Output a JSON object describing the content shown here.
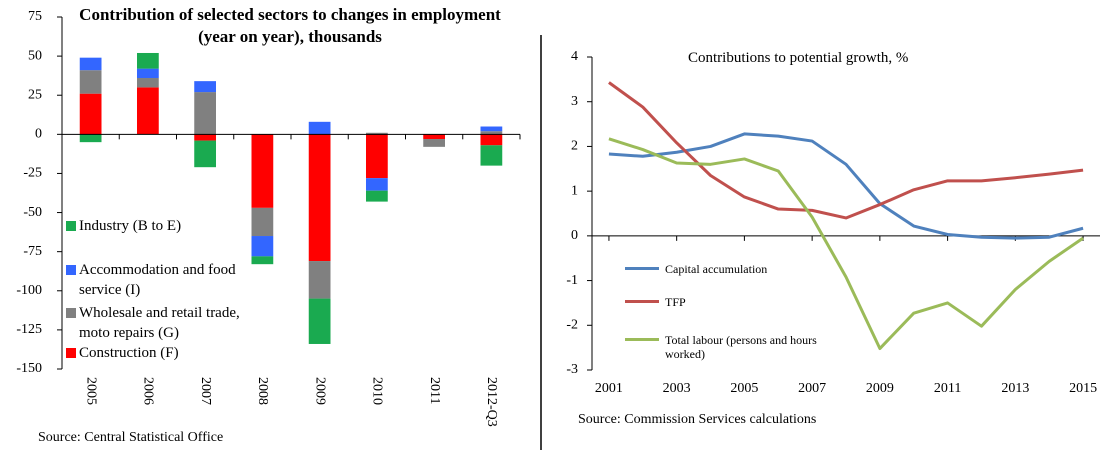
{
  "chart_data": [
    {
      "type": "bar",
      "stacked": true,
      "title": "Contribution of selected sectors to changes in employment (year on year), thousands",
      "source": "Source: Central Statistical Office",
      "categories": [
        "2005",
        "2006",
        "2007",
        "2008",
        "2009",
        "2010",
        "2011",
        "2012-Q3"
      ],
      "series": [
        {
          "name": "Industry (B to E)",
          "color": "#1aaa50",
          "values": [
            -5,
            10,
            -17,
            -5,
            -29,
            -7,
            0,
            -13
          ]
        },
        {
          "name": "Accommodation and food service (I)",
          "color": "#3366ff",
          "values": [
            8,
            6,
            7,
            -13,
            8,
            -8,
            0,
            3
          ]
        },
        {
          "name": "Wholesale and retail trade, moto repairs (G)",
          "color": "#808080",
          "values": [
            15,
            6,
            27,
            -18,
            -24,
            1,
            -5,
            2
          ]
        },
        {
          "name": "Construction (F)",
          "color": "#ff0000",
          "values": [
            26,
            30,
            -4,
            -47,
            -81,
            -28,
            -3,
            -7
          ]
        }
      ],
      "ylim": [
        -150,
        75
      ],
      "yticks": [
        -150,
        -125,
        -100,
        -75,
        -50,
        -25,
        0,
        25,
        50,
        75
      ],
      "legend": "lower left"
    },
    {
      "type": "line",
      "title": "Contributions  to potential growth, %",
      "source": "Source: Commission  Services calculations",
      "x": [
        2001,
        2002,
        2003,
        2004,
        2005,
        2006,
        2007,
        2008,
        2009,
        2010,
        2011,
        2012,
        2013,
        2014,
        2015
      ],
      "series": [
        {
          "name": "Capital accumulation",
          "color": "#4f81bd",
          "values": [
            1.83,
            1.78,
            1.87,
            2.0,
            2.28,
            2.23,
            2.12,
            1.6,
            0.72,
            0.22,
            0.03,
            -0.03,
            -0.05,
            -0.03,
            0.17
          ]
        },
        {
          "name": "TFP",
          "color": "#c0504d",
          "values": [
            3.43,
            2.88,
            2.08,
            1.35,
            0.87,
            0.6,
            0.57,
            0.4,
            0.7,
            1.03,
            1.23,
            1.23,
            1.3,
            1.38,
            1.47
          ]
        },
        {
          "name": "Total labour (persons and hours worked)",
          "color": "#9bbb59",
          "values": [
            2.17,
            1.93,
            1.63,
            1.6,
            1.72,
            1.45,
            0.42,
            -0.92,
            -2.52,
            -1.73,
            -1.5,
            -2.02,
            -1.2,
            -0.57,
            -0.05
          ]
        }
      ],
      "xlim": [
        2000.5,
        2015.5
      ],
      "xticks": [
        2001,
        2003,
        2005,
        2007,
        2009,
        2011,
        2013,
        2015
      ],
      "ylim": [
        -3,
        4
      ],
      "yticks": [
        -3,
        -2,
        -1,
        0,
        1,
        2,
        3,
        4
      ],
      "legend": "lower left"
    }
  ]
}
